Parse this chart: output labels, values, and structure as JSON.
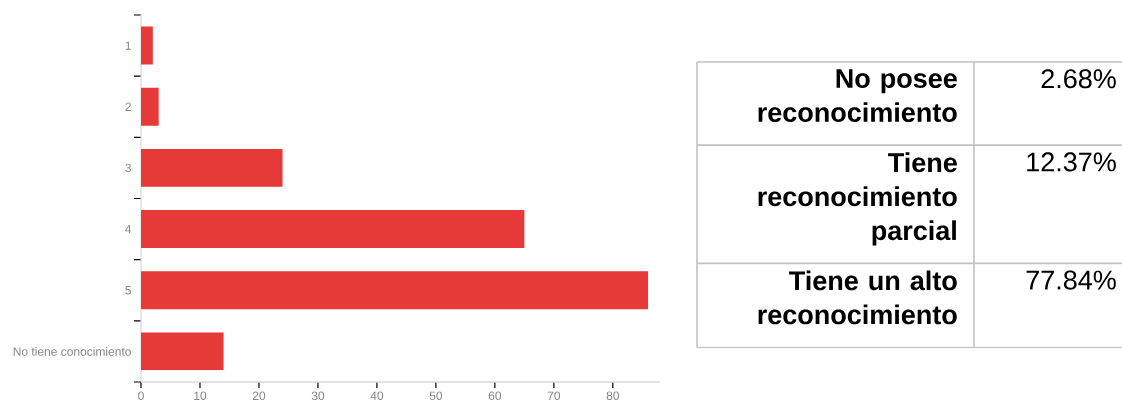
{
  "chart_data": [
    {
      "type": "bar",
      "orientation": "horizontal",
      "categories": [
        "1",
        "2",
        "3",
        "4",
        "5",
        "No tiene conocimiento"
      ],
      "values": [
        2,
        3,
        24,
        65,
        86,
        14
      ],
      "color": "#e53a37",
      "xlim": [
        0,
        88
      ],
      "xticks": [
        0,
        10,
        20,
        30,
        40,
        50,
        60,
        70,
        80
      ]
    },
    {
      "type": "other",
      "annotations": [
        "No posee reconocimiento",
        "2.68%",
        "Tiene reconocimiento parcial",
        "12.37%",
        "Tiene un alto reconocimiento",
        "77.84%"
      ]
    }
  ]
}
